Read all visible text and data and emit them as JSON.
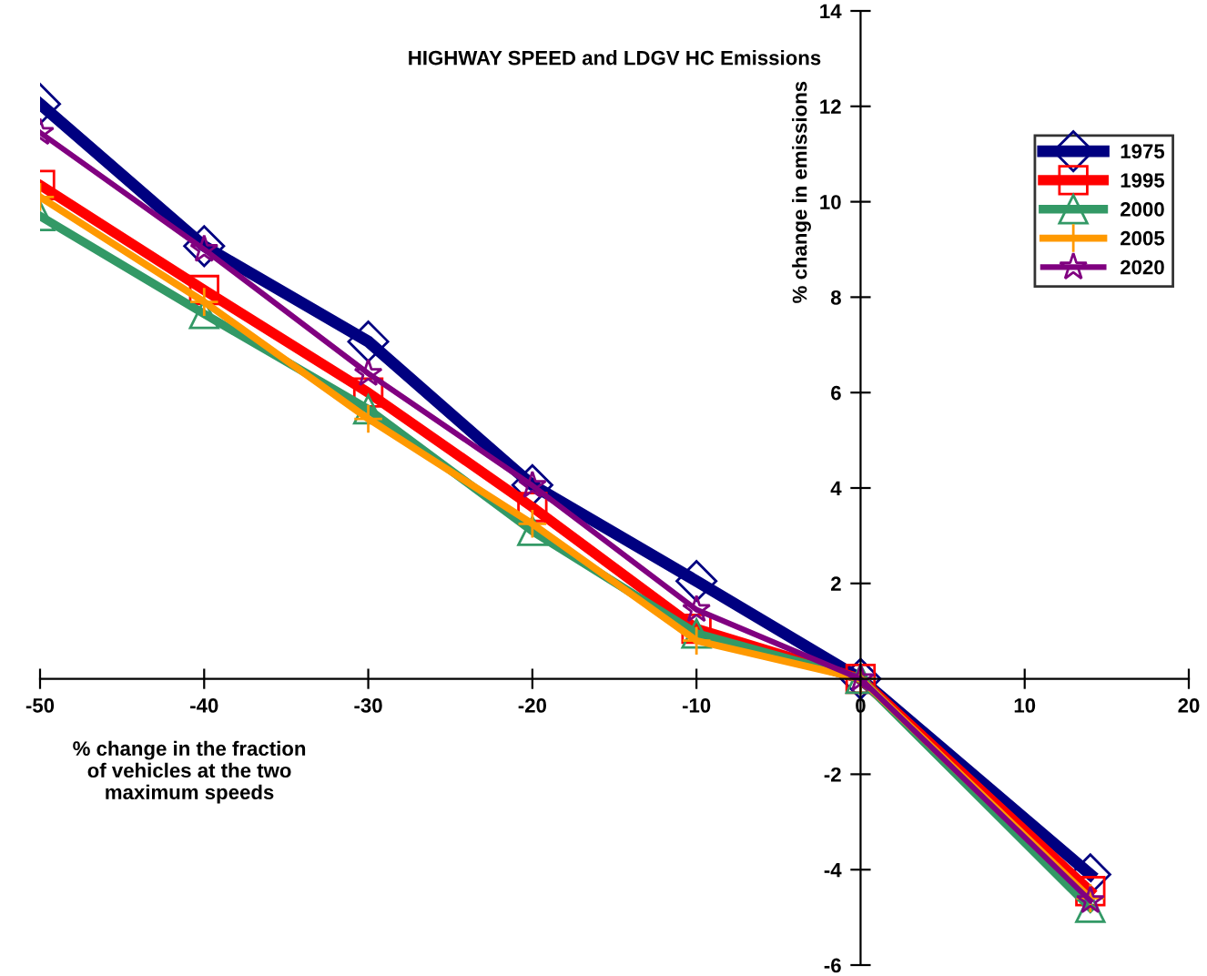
{
  "chart_data": {
    "type": "line",
    "title": "HIGHWAY SPEED and LDGV HC Emissions",
    "xlabel": "% change in the fraction\nof vehicles at the two\nmaximum speeds",
    "ylabel": "% change in emissions",
    "x": [
      -50,
      -40,
      -30,
      -20,
      -10,
      0,
      14
    ],
    "series": [
      {
        "name": "1975",
        "color": "#000080",
        "marker": "diamond",
        "values": [
          12.05,
          9.07,
          7.07,
          4.06,
          2.05,
          0,
          -4.1
        ]
      },
      {
        "name": "1995",
        "color": "#ff0000",
        "marker": "square",
        "values": [
          10.35,
          8.15,
          6.0,
          3.6,
          1.05,
          0,
          -4.45
        ]
      },
      {
        "name": "2000",
        "color": "#339966",
        "marker": "triangle",
        "values": [
          9.7,
          7.65,
          5.65,
          3.1,
          0.95,
          0,
          -4.8
        ]
      },
      {
        "name": "2005",
        "color": "#ff9900",
        "marker": "cross",
        "values": [
          10.1,
          7.9,
          5.45,
          3.25,
          0.8,
          0,
          -4.6
        ]
      },
      {
        "name": "2020",
        "color": "#800080",
        "marker": "star",
        "values": [
          11.45,
          9.0,
          6.4,
          4.05,
          1.45,
          0,
          -4.65
        ]
      }
    ],
    "xlim": [
      -50,
      20
    ],
    "xticks": [
      -50,
      -40,
      -30,
      -20,
      -10,
      0,
      10,
      20
    ],
    "ylim": [
      -6,
      14
    ],
    "yticks": [
      -6,
      -4,
      -2,
      {
        "value": 0,
        "label": null
      },
      2,
      4,
      6,
      8,
      10,
      12,
      14
    ],
    "grid": false,
    "legend": "top right",
    "line_style": "solid"
  }
}
